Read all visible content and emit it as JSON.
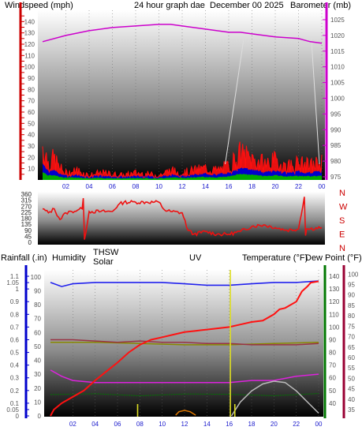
{
  "colors": {
    "wind": "#cc0000",
    "baro": "#cc00cc",
    "title": "#dddd00",
    "rain": "#cc0000",
    "humidity": "#1a1acc",
    "solar": "#887700",
    "uv": "#dd7700",
    "temperature": "#007700",
    "dewpoint": "#cc00cc",
    "thsw": "#cccccc",
    "gust": "#ff1010",
    "avgwind": "#0000cc",
    "mingreen": "#00aa00",
    "dir": "#ee1111",
    "rainline": "#ff1111",
    "humline": "#2222ee",
    "templine": "#993344",
    "solarline": "#888800",
    "dewline": "#dd22dd",
    "greenline": "#007700"
  },
  "header": {
    "windspeed_label": "Windspeed (mph)",
    "graph_title": "24 hour graph dae",
    "date": "December 00 2025",
    "barometer_label": "Barometer (mb)"
  },
  "direction_labels": [
    "N",
    "W",
    "S",
    "E",
    "N"
  ],
  "legend": {
    "rainfall": "Rainfall (.in)",
    "humidity": "Humidity",
    "thsw": "THSW",
    "solar": "Solar",
    "uv": "UV",
    "temperature": "Temperature (°F)",
    "dewpoint": "Dew Point (°F)"
  },
  "chart_data": [
    {
      "type": "line",
      "id": "wind-baro",
      "x_ticks": [
        "02",
        "04",
        "06",
        "08",
        "10",
        "12",
        "14",
        "16",
        "18",
        "20",
        "22",
        "00"
      ],
      "y_left_ticks": [
        "0",
        "5",
        "10",
        "15",
        "20",
        "25",
        "30",
        "35",
        "40",
        "45",
        "50",
        "55",
        "60",
        "65",
        "70",
        "75",
        "80",
        "85",
        "90",
        "95",
        "100",
        "105",
        "110",
        "115",
        "120",
        "125",
        "130",
        "135",
        "140",
        "145"
      ],
      "y_right_ticks": [
        "975",
        "980",
        "985",
        "990",
        "995",
        "1000",
        "1005",
        "1010",
        "1015",
        "1020",
        "1025"
      ],
      "ylim_left": [
        0,
        150
      ],
      "ylim_right": [
        974,
        1028
      ],
      "series": [
        {
          "name": "Barometer (mb)",
          "axis": "right",
          "x": [
            0,
            2,
            4,
            6,
            8,
            10,
            11,
            12,
            14,
            16,
            17,
            18,
            20,
            22,
            23,
            24
          ],
          "values": [
            1018,
            1020,
            1021.5,
            1022.5,
            1023,
            1023.5,
            1023.5,
            1023,
            1022,
            1021,
            1021,
            1020.5,
            1019.5,
            1019,
            1018,
            1017.5
          ]
        },
        {
          "name": "Windspeed (mph)",
          "axis": "left",
          "x": [
            0,
            0.5,
            1,
            1.5,
            2,
            3,
            4,
            5,
            6,
            7,
            8,
            9,
            10,
            11,
            12,
            13,
            14,
            15,
            16,
            17,
            18,
            19,
            20,
            21,
            22,
            23,
            24
          ],
          "values": [
            30,
            15,
            18,
            10,
            6,
            8,
            4,
            6,
            5,
            4,
            6,
            5,
            4,
            8,
            6,
            8,
            10,
            8,
            12,
            22,
            18,
            14,
            16,
            12,
            14,
            12,
            15
          ]
        }
      ]
    },
    {
      "type": "line",
      "id": "wind-direction",
      "y_ticks": [
        "0",
        "45",
        "90",
        "135",
        "180",
        "225",
        "270",
        "315",
        "360"
      ],
      "ylim": [
        0,
        360
      ],
      "series": [
        {
          "name": "Direction",
          "x": [
            0,
            0.5,
            1,
            1.5,
            2,
            2.5,
            3,
            3.4,
            3.5,
            3.6,
            4,
            5,
            6,
            6.5,
            7,
            8,
            9,
            10,
            10.5,
            11,
            12,
            12.5,
            13,
            14,
            15,
            16,
            17,
            18,
            19,
            20,
            21,
            22,
            22.5,
            22.6,
            22.7,
            23,
            24
          ],
          "values": [
            250,
            220,
            250,
            170,
            220,
            230,
            240,
            250,
            330,
            20,
            230,
            230,
            230,
            280,
            300,
            300,
            300,
            300,
            240,
            230,
            220,
            90,
            60,
            80,
            60,
            60,
            80,
            120,
            130,
            110,
            90,
            100,
            340,
            50,
            100,
            100,
            110
          ]
        }
      ]
    },
    {
      "type": "line",
      "id": "climate",
      "x_ticks": [
        "02",
        "04",
        "06",
        "08",
        "10",
        "12",
        "14",
        "16",
        "18",
        "20",
        "22",
        "00"
      ],
      "y_left_ticks": [
        "0",
        "0.05",
        "0.1",
        "0.2",
        "0.3",
        "0.4",
        "0.5",
        "0.6",
        "0.7",
        "0.8",
        "0.9",
        "1",
        "1.05",
        "1.1"
      ],
      "y_mid_ticks": [
        "0",
        "10",
        "20",
        "30",
        "40",
        "50",
        "60",
        "70",
        "80",
        "90",
        "100"
      ],
      "y_right_ticks": [
        "40",
        "50",
        "60",
        "70",
        "80",
        "90",
        "100",
        "110",
        "120",
        "130",
        "140"
      ],
      "y_far_ticks": [
        "35",
        "40",
        "45",
        "50",
        "55",
        "60",
        "65",
        "70",
        "75",
        "80",
        "85",
        "90",
        "95",
        "100"
      ],
      "series": [
        {
          "name": "Humidity",
          "axis": "mid",
          "x": [
            0,
            1,
            2,
            4,
            6,
            8,
            10,
            12,
            14,
            16,
            18,
            20,
            22,
            24
          ],
          "values": [
            96,
            93,
            95,
            96,
            96,
            96,
            96,
            95,
            94,
            94,
            95,
            96,
            96,
            97
          ]
        },
        {
          "name": "Rainfall (.in)",
          "axis": "left",
          "x": [
            0,
            0.3,
            1,
            2,
            3,
            4,
            5,
            6,
            7,
            8,
            9,
            10,
            11,
            12,
            13,
            14,
            15,
            16,
            17,
            18,
            19,
            20,
            20.5,
            21,
            22,
            22.5,
            23,
            23.3,
            24
          ],
          "values": [
            0,
            0.05,
            0.1,
            0.15,
            0.2,
            0.28,
            0.35,
            0.42,
            0.5,
            0.56,
            0.6,
            0.62,
            0.64,
            0.66,
            0.67,
            0.68,
            0.69,
            0.7,
            0.72,
            0.74,
            0.75,
            0.8,
            0.84,
            0.85,
            0.9,
            0.98,
            1.02,
            1.05,
            1.06
          ]
        },
        {
          "name": "Temperature (°F)",
          "axis": "right",
          "x": [
            0,
            2,
            4,
            6,
            8,
            10,
            12,
            14,
            16,
            18,
            20,
            22,
            24
          ],
          "values": [
            90,
            90,
            89,
            88,
            89,
            88,
            88,
            87,
            87,
            86,
            86,
            86,
            87
          ]
        },
        {
          "name": "Solar",
          "axis": "right",
          "x": [
            0,
            4,
            8,
            12,
            16,
            20,
            24
          ],
          "values": [
            88,
            88,
            87,
            86,
            86,
            87,
            88
          ]
        },
        {
          "name": "Dew Point (°F)",
          "axis": "far",
          "x": [
            0,
            1,
            2,
            4,
            6,
            8,
            10,
            12,
            14,
            16,
            18,
            20,
            22,
            24
          ],
          "values": [
            54,
            51,
            49,
            48,
            48,
            48,
            48,
            48,
            48,
            48,
            49,
            49,
            51,
            52
          ]
        },
        {
          "name": "THSW",
          "axis": "mid",
          "x": [
            16.2,
            17,
            18,
            19,
            20,
            21,
            22,
            23,
            24
          ],
          "values": [
            0,
            10,
            18,
            23,
            25,
            24,
            18,
            10,
            2
          ]
        },
        {
          "name": "UV",
          "axis": "mid",
          "x": [
            11.2,
            11.5,
            12,
            12.5,
            13
          ],
          "values": [
            0.5,
            3,
            4,
            3,
            0.5
          ]
        }
      ]
    }
  ]
}
